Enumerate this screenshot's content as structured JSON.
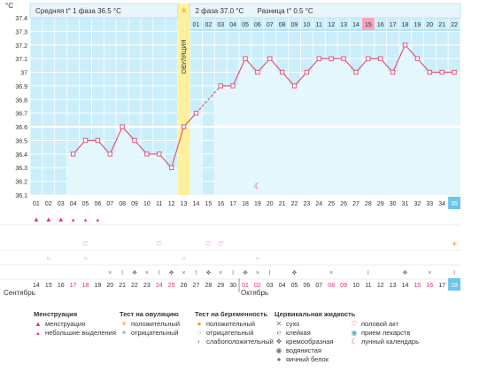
{
  "chart_data": {
    "type": "line",
    "y_unit": "°C",
    "ylim": [
      36.1,
      37.4
    ],
    "yticks": [
      "37.4",
      "37.3",
      "37.2",
      "37.1",
      "37",
      "36.9",
      "36.8",
      "36.7",
      "36.6",
      "36.5",
      "36.4",
      "36.3",
      "36.2",
      "36.1"
    ],
    "phase1_label": "Средняя t° 1 фаза",
    "phase1_value": "36.5 °C",
    "phase2_label": "2 фаза",
    "phase2_value": "37.0 °C",
    "diff_label": "Разница",
    "diff_value": "t° 0.5 °C",
    "ovulation_label": "ОВУЛЯЦИЯ",
    "ovulation_day": 13,
    "coverline": 36.6,
    "cycle_days": [
      "01",
      "02",
      "03",
      "04",
      "05",
      "06",
      "07",
      "08",
      "09",
      "10",
      "11",
      "12",
      "13",
      "14",
      "15",
      "16",
      "17",
      "18",
      "19",
      "20",
      "21",
      "22",
      "23",
      "24",
      "25",
      "26",
      "27",
      "28",
      "29",
      "30",
      "31",
      "32",
      "33",
      "34",
      "35"
    ],
    "top_day_labels": [
      "01",
      "02",
      "03",
      "04",
      "05",
      "06",
      "07",
      "08",
      "09",
      "10",
      "11",
      "12",
      "13",
      "14",
      "15",
      "16",
      "17",
      "18",
      "19",
      "20",
      "21",
      "22"
    ],
    "top_highlight_day": "15",
    "temps": [
      null,
      null,
      null,
      36.4,
      36.5,
      36.5,
      36.4,
      36.6,
      36.5,
      36.4,
      36.4,
      36.3,
      36.6,
      36.7,
      null,
      36.9,
      36.9,
      37.1,
      37.0,
      37.1,
      37.0,
      36.9,
      37.0,
      37.1,
      37.1,
      37.1,
      37.0,
      37.1,
      37.1,
      37.0,
      37.2,
      37.1,
      37.0,
      37.0,
      37.0
    ],
    "calendar_dates": [
      "14",
      "15",
      "16",
      "17",
      "18",
      "19",
      "20",
      "21",
      "22",
      "23",
      "24",
      "25",
      "26",
      "27",
      "28",
      "29",
      "30",
      "01",
      "02",
      "03",
      "04",
      "05",
      "06",
      "07",
      "08",
      "09",
      "10",
      "11",
      "12",
      "13",
      "14",
      "15",
      "16",
      "17",
      "18"
    ],
    "red_date_indices": [
      3,
      4,
      10,
      11,
      17,
      18,
      24,
      25,
      31,
      32
    ],
    "month_start": "Сентябрь",
    "month_next": "Октябрь",
    "today_cycle_day": "35",
    "today_date": "18",
    "series": [
      {
        "values_ref": "temps"
      }
    ]
  },
  "legend": {
    "menstruation": {
      "title": "Менструация",
      "items": [
        "менструация",
        "небольшие выделения"
      ]
    },
    "ovulation_test": {
      "title": "Тест на овуляцию",
      "items": [
        "положительный",
        "отрицательный"
      ]
    },
    "pregnancy_test": {
      "title": "Тест на беременность",
      "items": [
        "положительный",
        "отрицательный",
        "слабоположительный"
      ]
    },
    "cervical": {
      "title": "Цервикальная жидкость",
      "items": [
        "сухо",
        "клейкая",
        "кремообразная",
        "водянистая",
        "яичный белок"
      ]
    },
    "other": {
      "items": [
        "половой акт",
        "прием лекарств",
        "лунный календарь"
      ]
    }
  },
  "colors": {
    "high": "#8fd8f5",
    "low": "#d6f0fb",
    "ovulation": "#fff0a0",
    "line": "#e05878",
    "menstruation": "#e8357a",
    "highlight_day": "#f7a4c0",
    "today": "#6cc6e8"
  }
}
